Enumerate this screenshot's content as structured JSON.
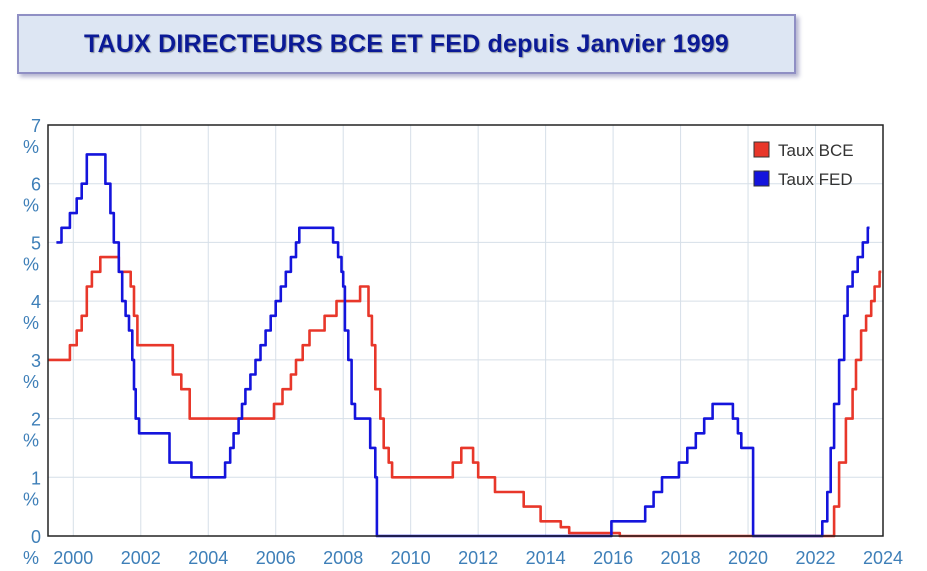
{
  "header": {
    "title": "TAUX DIRECTEURS BCE ET FED depuis Janvier 1999"
  },
  "chart_data": {
    "type": "line",
    "title": "TAUX DIRECTEURS BCE ET FED depuis Janvier 1999",
    "xlabel": "",
    "ylabel": "",
    "xlim": [
      1999.25,
      2024.0
    ],
    "ylim": [
      0,
      7
    ],
    "x_ticks": [
      "2000",
      "2002",
      "2004",
      "2006",
      "2008",
      "2010",
      "2012",
      "2014",
      "2016",
      "2018",
      "2020",
      "2022",
      "2024"
    ],
    "y_ticks": [
      {
        "value": "0",
        "unit": "%"
      },
      {
        "value": "1",
        "unit": "%"
      },
      {
        "value": "2",
        "unit": "%"
      },
      {
        "value": "3",
        "unit": "%"
      },
      {
        "value": "4",
        "unit": "%"
      },
      {
        "value": "5",
        "unit": "%"
      },
      {
        "value": "6",
        "unit": "%"
      },
      {
        "value": "7",
        "unit": "%"
      }
    ],
    "grid": true,
    "legend_position": "top-right",
    "series": [
      {
        "name": "Taux BCE",
        "color": "#e8372a",
        "step": true,
        "points": [
          [
            1999.0,
            3.0
          ],
          [
            1999.6,
            3.0
          ],
          [
            1999.9,
            3.25
          ],
          [
            2000.1,
            3.5
          ],
          [
            2000.25,
            3.75
          ],
          [
            2000.4,
            4.25
          ],
          [
            2000.55,
            4.5
          ],
          [
            2000.8,
            4.75
          ],
          [
            2001.35,
            4.5
          ],
          [
            2001.7,
            4.25
          ],
          [
            2001.8,
            3.75
          ],
          [
            2001.9,
            3.25
          ],
          [
            2002.95,
            2.75
          ],
          [
            2003.2,
            2.5
          ],
          [
            2003.45,
            2.0
          ],
          [
            2005.95,
            2.25
          ],
          [
            2006.2,
            2.5
          ],
          [
            2006.45,
            2.75
          ],
          [
            2006.6,
            3.0
          ],
          [
            2006.8,
            3.25
          ],
          [
            2007.0,
            3.5
          ],
          [
            2007.45,
            3.75
          ],
          [
            2007.8,
            4.0
          ],
          [
            2008.5,
            4.25
          ],
          [
            2008.75,
            3.75
          ],
          [
            2008.85,
            3.25
          ],
          [
            2008.95,
            2.5
          ],
          [
            2009.1,
            2.0
          ],
          [
            2009.2,
            1.5
          ],
          [
            2009.35,
            1.25
          ],
          [
            2009.45,
            1.0
          ],
          [
            2011.25,
            1.25
          ],
          [
            2011.5,
            1.5
          ],
          [
            2011.85,
            1.25
          ],
          [
            2012.0,
            1.0
          ],
          [
            2012.5,
            0.75
          ],
          [
            2013.35,
            0.5
          ],
          [
            2013.85,
            0.25
          ],
          [
            2014.45,
            0.15
          ],
          [
            2014.7,
            0.05
          ],
          [
            2016.2,
            0.0
          ],
          [
            2022.55,
            0.5
          ],
          [
            2022.7,
            1.25
          ],
          [
            2022.9,
            2.0
          ],
          [
            2023.1,
            2.5
          ],
          [
            2023.2,
            3.0
          ],
          [
            2023.35,
            3.5
          ],
          [
            2023.5,
            3.75
          ],
          [
            2023.65,
            4.0
          ],
          [
            2023.75,
            4.25
          ],
          [
            2023.9,
            4.5
          ],
          [
            2023.95,
            4.5
          ]
        ]
      },
      {
        "name": "Taux FED",
        "color": "#1414dc",
        "step": true,
        "points": [
          [
            1999.5,
            5.0
          ],
          [
            1999.65,
            5.25
          ],
          [
            1999.9,
            5.5
          ],
          [
            2000.1,
            5.75
          ],
          [
            2000.25,
            6.0
          ],
          [
            2000.4,
            6.5
          ],
          [
            2000.95,
            6.0
          ],
          [
            2001.1,
            5.5
          ],
          [
            2001.2,
            5.0
          ],
          [
            2001.35,
            4.5
          ],
          [
            2001.45,
            4.0
          ],
          [
            2001.55,
            3.75
          ],
          [
            2001.65,
            3.5
          ],
          [
            2001.75,
            3.0
          ],
          [
            2001.8,
            2.5
          ],
          [
            2001.85,
            2.0
          ],
          [
            2001.95,
            1.75
          ],
          [
            2002.85,
            1.25
          ],
          [
            2003.5,
            1.0
          ],
          [
            2004.5,
            1.25
          ],
          [
            2004.65,
            1.5
          ],
          [
            2004.75,
            1.75
          ],
          [
            2004.9,
            2.0
          ],
          [
            2005.0,
            2.25
          ],
          [
            2005.1,
            2.5
          ],
          [
            2005.25,
            2.75
          ],
          [
            2005.4,
            3.0
          ],
          [
            2005.55,
            3.25
          ],
          [
            2005.7,
            3.5
          ],
          [
            2005.85,
            3.75
          ],
          [
            2006.0,
            4.0
          ],
          [
            2006.15,
            4.25
          ],
          [
            2006.3,
            4.5
          ],
          [
            2006.45,
            4.75
          ],
          [
            2006.6,
            5.0
          ],
          [
            2006.7,
            5.25
          ],
          [
            2007.7,
            5.0
          ],
          [
            2007.85,
            4.75
          ],
          [
            2007.95,
            4.5
          ],
          [
            2008.0,
            4.25
          ],
          [
            2008.05,
            3.5
          ],
          [
            2008.15,
            3.0
          ],
          [
            2008.25,
            2.25
          ],
          [
            2008.35,
            2.0
          ],
          [
            2008.8,
            1.5
          ],
          [
            2008.95,
            1.0
          ],
          [
            2009.0,
            0.0
          ],
          [
            2015.95,
            0.25
          ],
          [
            2016.95,
            0.5
          ],
          [
            2017.2,
            0.75
          ],
          [
            2017.45,
            1.0
          ],
          [
            2017.95,
            1.25
          ],
          [
            2018.2,
            1.5
          ],
          [
            2018.45,
            1.75
          ],
          [
            2018.7,
            2.0
          ],
          [
            2018.95,
            2.25
          ],
          [
            2019.55,
            2.0
          ],
          [
            2019.7,
            1.75
          ],
          [
            2019.8,
            1.5
          ],
          [
            2020.15,
            0.0
          ],
          [
            2022.2,
            0.25
          ],
          [
            2022.35,
            0.75
          ],
          [
            2022.45,
            1.5
          ],
          [
            2022.55,
            2.25
          ],
          [
            2022.7,
            3.0
          ],
          [
            2022.85,
            3.75
          ],
          [
            2022.95,
            4.25
          ],
          [
            2023.1,
            4.5
          ],
          [
            2023.25,
            4.75
          ],
          [
            2023.4,
            5.0
          ],
          [
            2023.55,
            5.25
          ],
          [
            2023.6,
            5.25
          ]
        ]
      }
    ]
  }
}
